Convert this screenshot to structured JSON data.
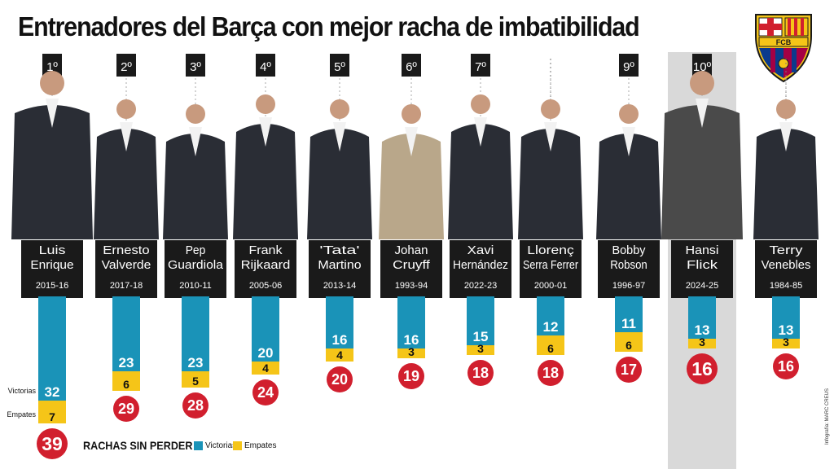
{
  "page_title": "Entrenadores del Barça con mejor racha de imbatibilidad",
  "crest_text": "FCB",
  "legend": {
    "title": "RACHAS SIN PERDER",
    "victorias_label": "Victorias",
    "empates_label": "Empates"
  },
  "credit": "Infografía: MARC CREUS",
  "colors": {
    "victorias": "#1a93b8",
    "empates": "#f5c518",
    "total_circle": "#d11f2e",
    "highlight_bg": "#d9d9d9",
    "name_box": "#1a1a1a"
  },
  "chart_data": {
    "type": "bar",
    "title": "Entrenadores del Barça con mejor racha de imbatibilidad",
    "side_labels": {
      "victorias": "Victorias",
      "empates": "Empates"
    },
    "categories": [
      "Luis Enrique",
      "Ernesto Valverde",
      "Pep Guardiola",
      "Frank Rijkaard",
      "'Tata' Martino",
      "Johan Cruyff",
      "Xavi Hernández",
      "Llorenç Serra Ferrer",
      "Bobby Robson",
      "Hansi Flick",
      "Terry Venebles"
    ],
    "ranks": [
      "1º",
      "2º",
      "3º",
      "4º",
      "5º",
      "6º",
      "7º",
      "",
      "9º",
      "10º",
      ""
    ],
    "name_lines": [
      [
        "Luis",
        "Enrique"
      ],
      [
        "Ernesto",
        "Valverde"
      ],
      [
        "Pep",
        "Guardiola"
      ],
      [
        "Frank",
        "Rijkaard"
      ],
      [
        "'Tata'",
        "Martino"
      ],
      [
        "Johan",
        "Cruyff"
      ],
      [
        "Xavi",
        "Hernández"
      ],
      [
        "Llorenç",
        "Serra Ferrer"
      ],
      [
        "Bobby",
        "Robson"
      ],
      [
        "Hansi",
        "Flick"
      ],
      [
        "Terry",
        "Venebles"
      ]
    ],
    "seasons": [
      "2015-16",
      "2017-18",
      "2010-11",
      "2005-06",
      "2013-14",
      "1993-94",
      "2022-23",
      "2000-01",
      "1996-97",
      "2024-25",
      "1984-85"
    ],
    "series": [
      {
        "name": "Victorias",
        "values": [
          32,
          23,
          23,
          20,
          16,
          16,
          15,
          12,
          11,
          13,
          13
        ]
      },
      {
        "name": "Empates",
        "values": [
          7,
          6,
          5,
          4,
          4,
          3,
          3,
          6,
          6,
          3,
          3
        ]
      }
    ],
    "totals": [
      39,
      29,
      28,
      24,
      20,
      19,
      18,
      18,
      17,
      16,
      16
    ],
    "highlight_index": 9,
    "stacked": true
  }
}
